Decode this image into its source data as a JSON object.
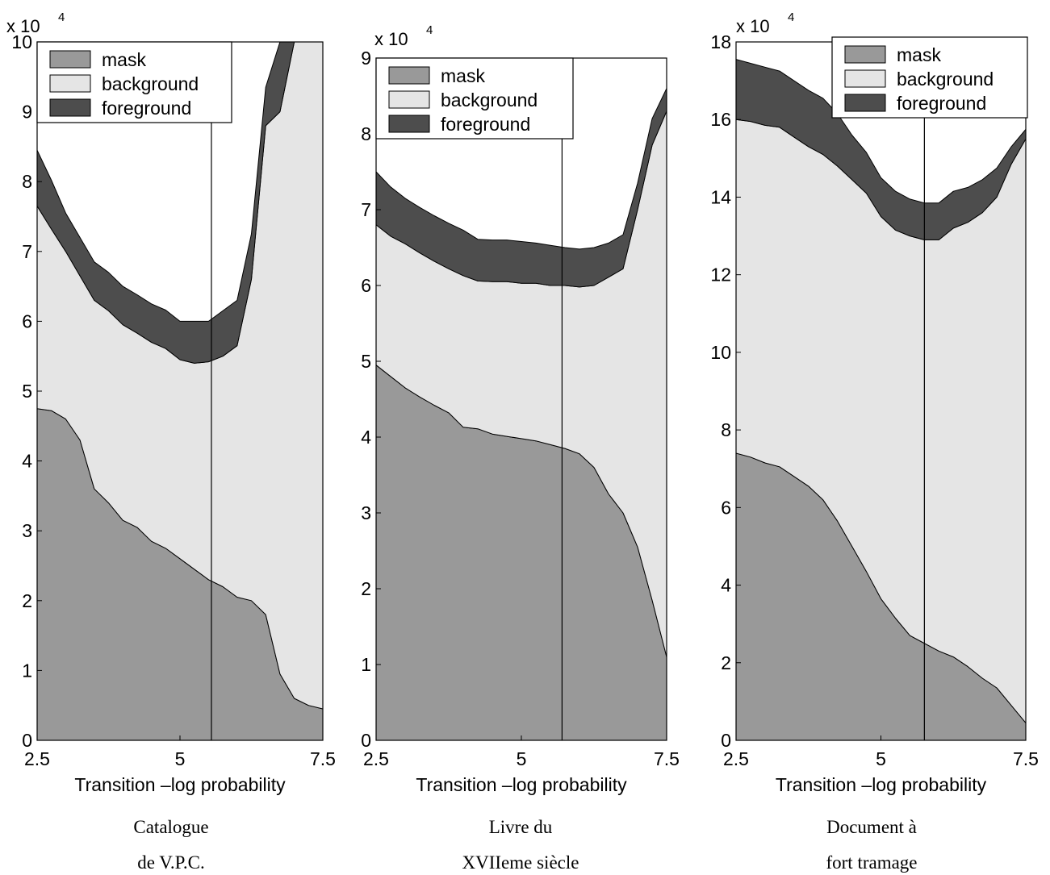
{
  "chart_data": [
    {
      "type": "area",
      "stacked": true,
      "x_tick_labels": [
        "2.5",
        "5",
        "7.5"
      ],
      "y_tick_labels": [
        "0",
        "1",
        "2",
        "3",
        "4",
        "5",
        "6",
        "7",
        "8",
        "9",
        "10"
      ],
      "xlabel": "Transition –log probability",
      "y_multiplier": "x 10",
      "y_multiplier_exp": "4",
      "xlim": [
        2.5,
        7.5
      ],
      "ylim": [
        0,
        100000
      ],
      "legend_placement": "top-left",
      "caption": [
        "Catalogue",
        "de V.P.C."
      ],
      "vline_x": 5.55,
      "x": [
        2.5,
        2.75,
        3.0,
        3.25,
        3.5,
        3.75,
        4.0,
        4.25,
        4.5,
        4.75,
        5.0,
        5.25,
        5.5,
        5.75,
        6.0,
        6.25,
        6.5,
        6.75,
        7.0,
        7.25,
        7.5
      ],
      "series": [
        {
          "name": "mask",
          "values": [
            47500,
            47200,
            46000,
            43000,
            36000,
            34000,
            31500,
            30500,
            28500,
            27500,
            26000,
            24500,
            23000,
            22000,
            20500,
            20000,
            18000,
            9500,
            6000,
            5000,
            4500
          ]
        },
        {
          "name": "background",
          "values": [
            29000,
            26000,
            24000,
            23500,
            27000,
            27500,
            28000,
            27800,
            28500,
            28600,
            28500,
            29500,
            31200,
            33000,
            36000,
            46000,
            70000,
            80500,
            94000,
            95000,
            95500
          ]
        },
        {
          "name": "foreground",
          "values": [
            8000,
            7000,
            5500,
            5500,
            5500,
            5500,
            5500,
            5500,
            5500,
            5500,
            5500,
            6000,
            5800,
            6500,
            6500,
            6500,
            5500,
            10000,
            5000,
            5000,
            5000
          ]
        }
      ]
    },
    {
      "type": "area",
      "stacked": true,
      "x_tick_labels": [
        "2.5",
        "5",
        "7.5"
      ],
      "y_tick_labels": [
        "0",
        "1",
        "2",
        "3",
        "4",
        "5",
        "6",
        "7",
        "8",
        "9"
      ],
      "xlabel": "Transition  –log probability",
      "y_multiplier": "x 10",
      "y_multiplier_exp": "4",
      "xlim": [
        2.5,
        7.5
      ],
      "ylim": [
        0,
        90000
      ],
      "legend_placement": "top-left",
      "caption": [
        "Livre du",
        "XVIIeme siècle"
      ],
      "vline_x": 5.7,
      "x": [
        2.5,
        2.75,
        3.0,
        3.25,
        3.5,
        3.75,
        4.0,
        4.25,
        4.5,
        4.75,
        5.0,
        5.25,
        5.5,
        5.75,
        6.0,
        6.25,
        6.5,
        6.75,
        7.0,
        7.25,
        7.5
      ],
      "series": [
        {
          "name": "mask",
          "values": [
            49500,
            48000,
            46500,
            45300,
            44200,
            43200,
            41300,
            41100,
            40400,
            40100,
            39800,
            39500,
            39000,
            38500,
            37800,
            36000,
            32500,
            30000,
            25500,
            18500,
            11000
          ]
        },
        {
          "name": "background",
          "values": [
            18500,
            18500,
            19000,
            19000,
            19000,
            19000,
            20000,
            19500,
            20100,
            20400,
            20500,
            20800,
            21000,
            21500,
            22000,
            24000,
            28600,
            32200,
            44500,
            60000,
            72000
          ]
        },
        {
          "name": "foreground",
          "values": [
            7000,
            6500,
            6000,
            6000,
            6000,
            6000,
            6000,
            5500,
            5500,
            5500,
            5500,
            5300,
            5300,
            5000,
            5000,
            5000,
            4500,
            4500,
            3500,
            3500,
            3000
          ]
        }
      ]
    },
    {
      "type": "area",
      "stacked": true,
      "x_tick_labels": [
        "2.5",
        "5",
        "7.5"
      ],
      "y_tick_labels": [
        "0",
        "2",
        "4",
        "6",
        "8",
        "10",
        "12",
        "14",
        "16",
        "18"
      ],
      "xlabel": "Transition –log probability",
      "y_multiplier": "x 10",
      "y_multiplier_exp": "4",
      "xlim": [
        2.5,
        7.5
      ],
      "ylim": [
        0,
        180000
      ],
      "legend_placement": "top-right",
      "caption": [
        "Document à",
        "fort tramage"
      ],
      "vline_x": 5.75,
      "x": [
        2.5,
        2.75,
        3.0,
        3.25,
        3.5,
        3.75,
        4.0,
        4.25,
        4.5,
        4.75,
        5.0,
        5.25,
        5.5,
        5.75,
        6.0,
        6.25,
        6.5,
        6.75,
        7.0,
        7.25,
        7.5
      ],
      "series": [
        {
          "name": "mask",
          "values": [
            74000,
            73000,
            71500,
            70500,
            68000,
            65500,
            62000,
            56500,
            50000,
            43500,
            36500,
            31500,
            27000,
            25000,
            23000,
            21500,
            19000,
            16000,
            13500,
            9000,
            4500
          ]
        },
        {
          "name": "background",
          "values": [
            86000,
            86500,
            87000,
            87500,
            87500,
            87500,
            89000,
            91500,
            94500,
            97500,
            98500,
            100000,
            103000,
            104000,
            106000,
            110500,
            114500,
            120000,
            126500,
            139500,
            150500
          ]
        },
        {
          "name": "foreground",
          "values": [
            15500,
            15000,
            15000,
            14500,
            14500,
            14500,
            14500,
            13500,
            11500,
            10500,
            10000,
            10000,
            9500,
            9500,
            9500,
            9500,
            9000,
            8500,
            7500,
            4500,
            2500
          ]
        }
      ]
    }
  ]
}
